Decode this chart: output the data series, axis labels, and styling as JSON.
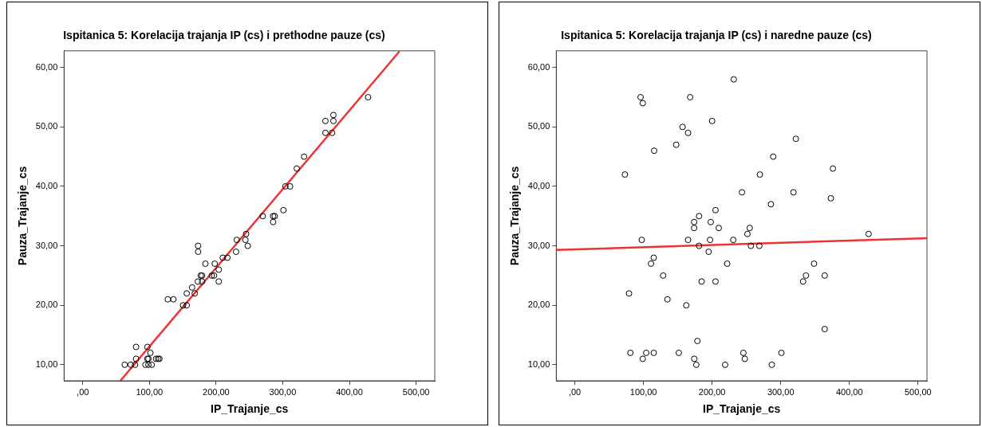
{
  "chart_data": [
    {
      "type": "scatter",
      "title": "Ispitanica 5: Korelacija trajanja IP (cs) i prethodne pauze (cs)",
      "xlabel": "IP_Trajanje_cs",
      "ylabel": "Pauza_Trajanje_cs",
      "marker": "circle",
      "xlim": [
        -28,
        528
      ],
      "ylim": [
        7.3,
        62.8
      ],
      "xticks": [
        {
          "value": 0,
          "label": ",00"
        },
        {
          "value": 100,
          "label": "100,00"
        },
        {
          "value": 200,
          "label": "200,00"
        },
        {
          "value": 300,
          "label": "300,00"
        },
        {
          "value": 400,
          "label": "400,00"
        },
        {
          "value": 500,
          "label": "500,00"
        }
      ],
      "yticks": [
        {
          "value": 10,
          "label": "10,00"
        },
        {
          "value": 20,
          "label": "20,00"
        },
        {
          "value": 30,
          "label": "30,00"
        },
        {
          "value": 40,
          "label": "40,00"
        },
        {
          "value": 50,
          "label": "50,00"
        },
        {
          "value": 60,
          "label": "60,00"
        }
      ],
      "series": [
        {
          "color": "#000000",
          "x": [
            428,
            376,
            364,
            376,
            364,
            374,
            332,
            321,
            304,
            311,
            301,
            270,
            285.5,
            288,
            285.5,
            245,
            231,
            244,
            247.5,
            173,
            173,
            230,
            210,
            217,
            184,
            198,
            204,
            177,
            179,
            193.5,
            197,
            172.6,
            179,
            204,
            164,
            156,
            168,
            127.6,
            136,
            150.5,
            156,
            80,
            97,
            101.5,
            80,
            97,
            98.5,
            110,
            113,
            115,
            63,
            72,
            78.5,
            94,
            98.5,
            103.5
          ],
          "values": [
            55,
            52,
            51,
            51,
            49,
            49,
            45,
            43,
            40,
            40,
            36,
            35,
            35,
            35,
            34,
            32,
            31,
            31,
            30,
            30,
            29,
            29,
            28,
            28,
            27,
            27,
            26,
            25,
            25,
            25,
            25,
            24,
            24,
            24,
            23,
            22,
            22,
            21,
            21,
            20,
            20,
            13,
            13,
            12,
            11,
            11,
            11,
            11,
            11,
            11,
            10,
            10,
            10,
            10,
            10,
            10
          ]
        },
        {
          "type": "line",
          "color": "#ee3333",
          "marker": "none",
          "x": [
            56.4,
            475
          ],
          "values": [
            7.3,
            62.7
          ]
        }
      ]
    },
    {
      "type": "scatter",
      "title": "Ispitanica 5: Korelacija trajanja IP (cs) i naredne pauze (cs)",
      "xlabel": "IP_Trajanje_cs",
      "ylabel": "Pauza_Trajanje_cs",
      "marker": "circle",
      "xlim": [
        -27,
        513
      ],
      "ylim": [
        7.3,
        62.8
      ],
      "xticks": [
        {
          "value": 0,
          "label": ",00"
        },
        {
          "value": 100,
          "label": "100,00"
        },
        {
          "value": 200,
          "label": "200,00"
        },
        {
          "value": 300,
          "label": "300,00"
        },
        {
          "value": 400,
          "label": "400,00"
        },
        {
          "value": 500,
          "label": "500,00"
        }
      ],
      "yticks": [
        {
          "value": 10,
          "label": "10,00"
        },
        {
          "value": 20,
          "label": "20,00"
        },
        {
          "value": 30,
          "label": "30,00"
        },
        {
          "value": 40,
          "label": "40,00"
        },
        {
          "value": 50,
          "label": "50,00"
        },
        {
          "value": 60,
          "label": "60,00"
        }
      ],
      "series": [
        {
          "color": "#000000",
          "x": [
            231.6,
            95.8,
            99,
            168,
            200,
            157,
            165,
            147.7,
            115.6,
            322,
            289,
            376,
            73,
            269.6,
            243.5,
            318.6,
            373,
            285.7,
            205,
            181,
            173.8,
            173.8,
            198,
            209.7,
            254.8,
            251.5,
            428,
            97.5,
            165,
            197,
            230.8,
            181,
            256.5,
            268.8,
            195,
            115,
            111,
            222,
            348.5,
            128.7,
            336.7,
            364,
            184.8,
            205,
            332.5,
            79,
            135,
            162.4,
            364,
            178.5,
            81,
            104,
            115,
            151.5,
            245.6,
            301,
            99,
            174,
            247.7,
            177,
            219,
            287
          ],
          "values": [
            58,
            55,
            54,
            55,
            51,
            50,
            49,
            47,
            46,
            48,
            45,
            43,
            42,
            42,
            39,
            39,
            38,
            37,
            36,
            35,
            34,
            33,
            34,
            33,
            33,
            32,
            32,
            31,
            31,
            31,
            31,
            30,
            30,
            30,
            29,
            28,
            27,
            27,
            27,
            25,
            25,
            25,
            24,
            24,
            24,
            22,
            21,
            20,
            16,
            14,
            12,
            12,
            12,
            12,
            12,
            12,
            11,
            11,
            11,
            10,
            10,
            10
          ]
        },
        {
          "type": "line",
          "color": "#ee3333",
          "marker": "none",
          "x": [
            -27,
            513
          ],
          "values": [
            29.3,
            31.3
          ]
        }
      ]
    }
  ]
}
